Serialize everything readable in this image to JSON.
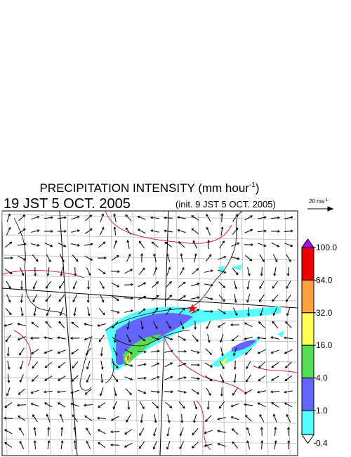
{
  "header": {
    "title": "PRECIPITATION INTENSITY (mm hour",
    "title_superscript": "-1",
    "title_end": ")",
    "valid_time": "19 JST 5 OCT. 2005",
    "init_time": "(init. 9 JST 5 OCT. 2005)"
  },
  "wind_scale": {
    "label": "20 ms",
    "superscript": "-1"
  },
  "colorbar": {
    "levels": [
      {
        "value": 100,
        "label": "100.0"
      },
      {
        "value": 64,
        "label": "64.0"
      },
      {
        "value": 32,
        "label": "32.0"
      },
      {
        "value": 16,
        "label": "16.0"
      },
      {
        "value": 4,
        "label": "4.0"
      },
      {
        "value": 1,
        "label": "1.0"
      },
      {
        "value": 0.4,
        "label": "0.4"
      }
    ],
    "colors": [
      "#aa00ff",
      "#ee0000",
      "#ffa040",
      "#ffff55",
      "#55dd55",
      "#6464ff",
      "#55ffff",
      "#ffffff"
    ]
  }
}
